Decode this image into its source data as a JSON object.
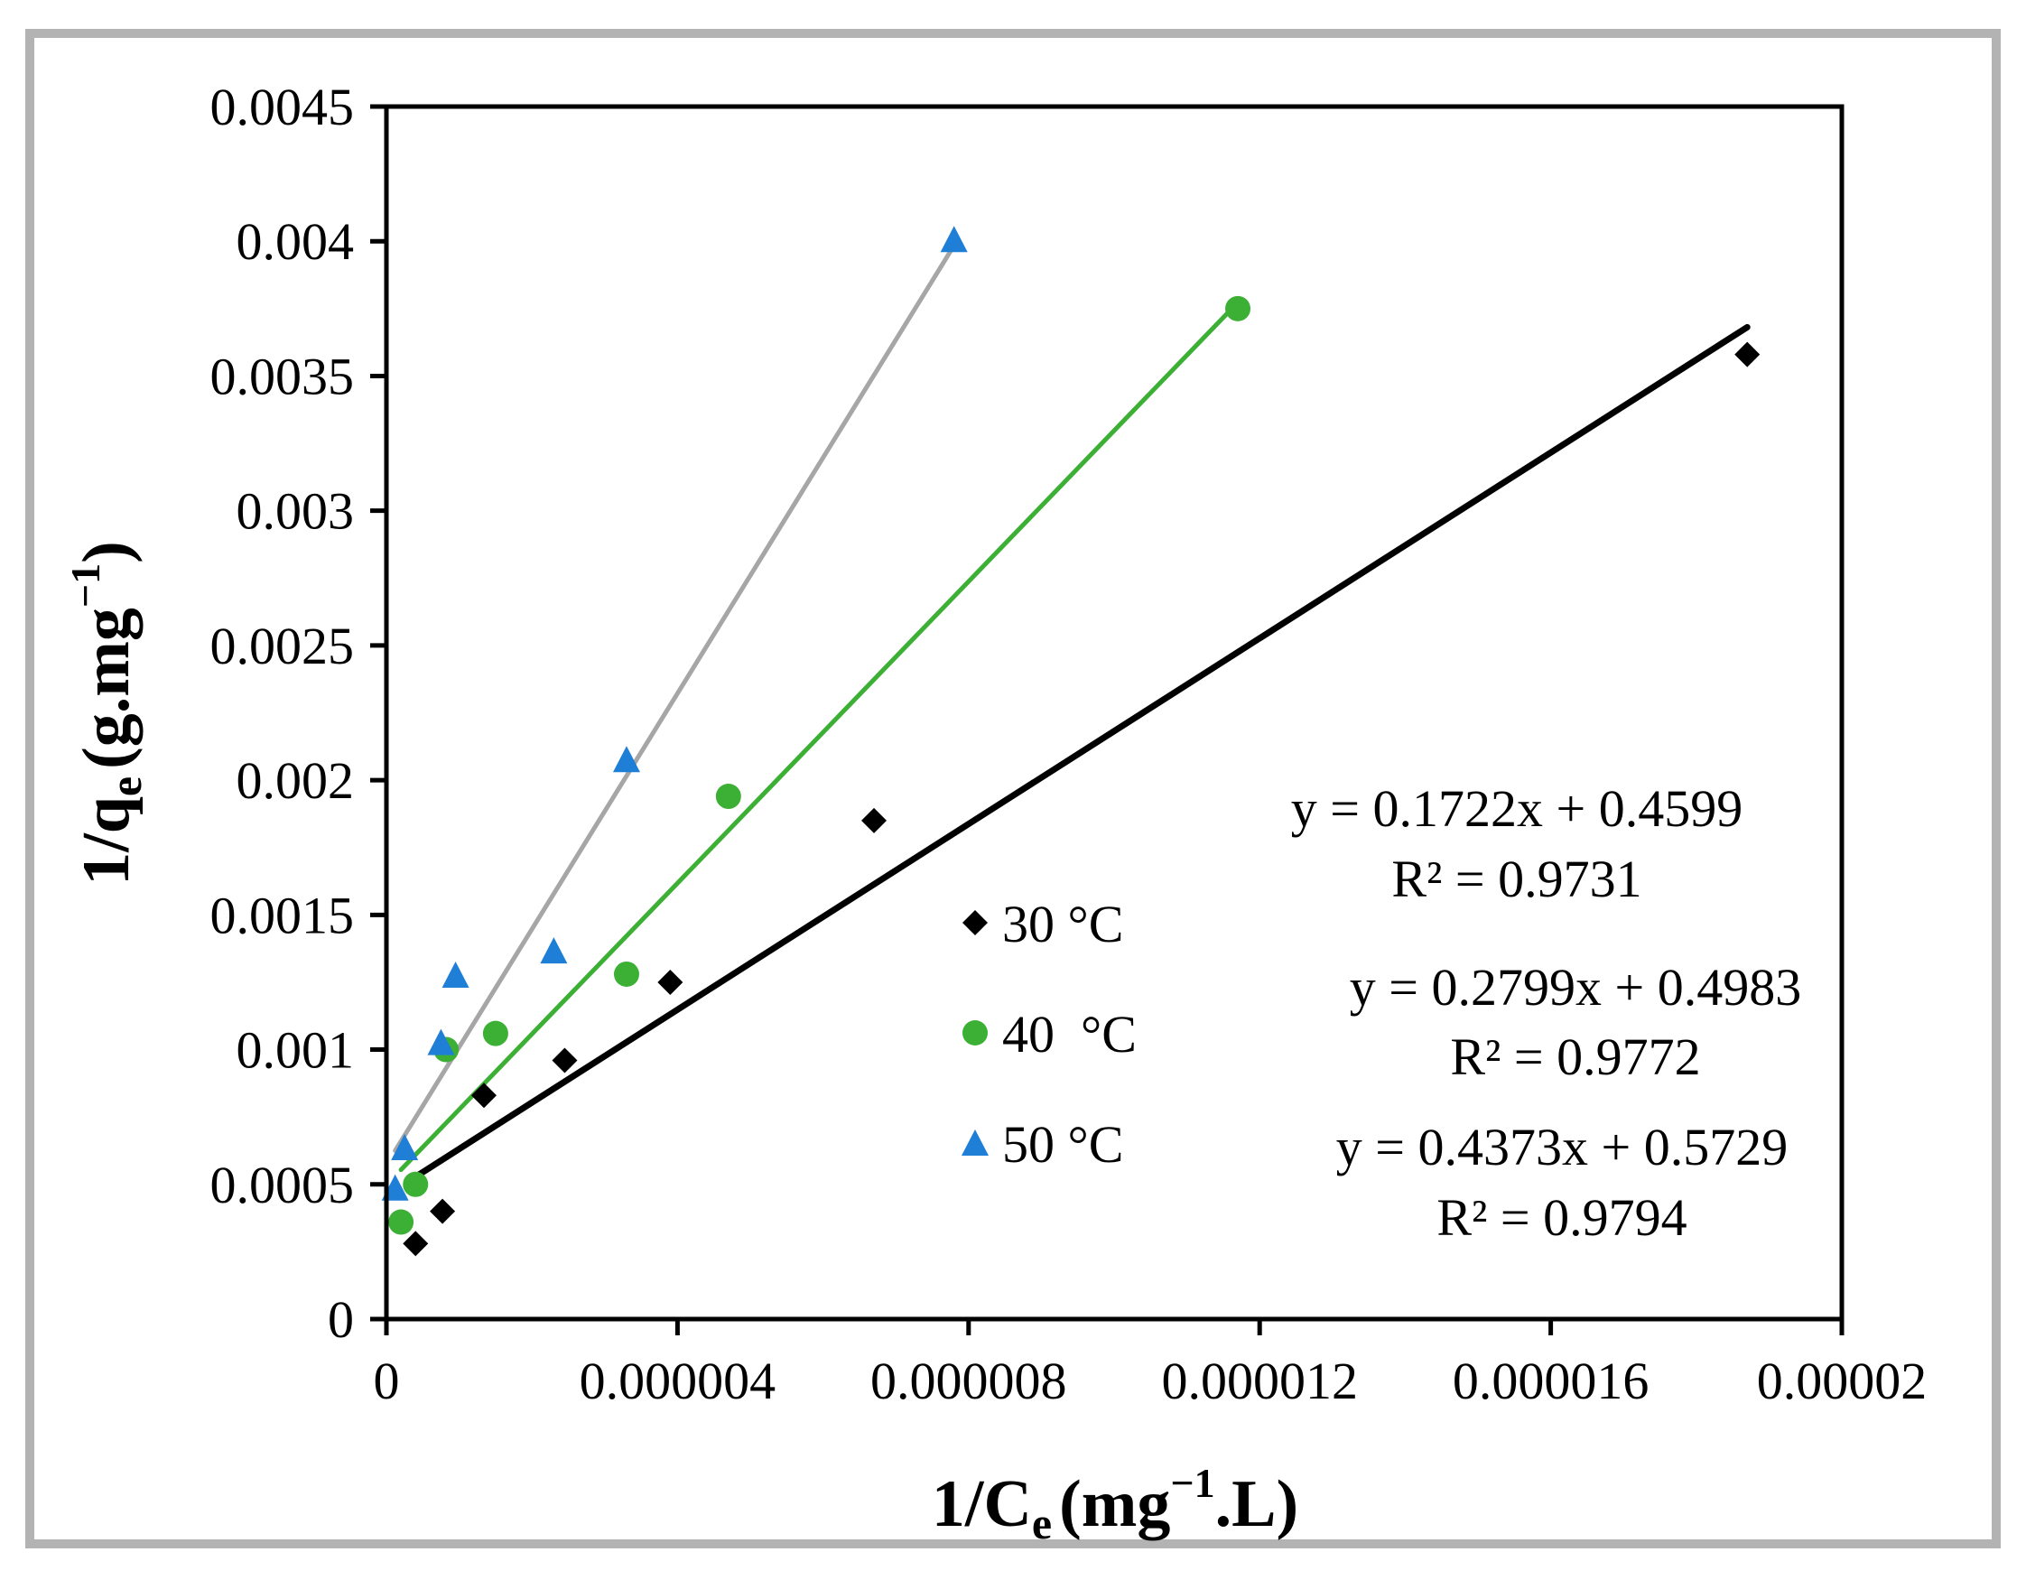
{
  "chart_data": {
    "type": "scatter",
    "xlabel": {
      "main": "1/C",
      "sub": "e",
      "rest1": "(mg",
      "sup": "−1",
      "rest2": ".L)"
    },
    "ylabel": {
      "main": "1/q",
      "sub": "e",
      "rest1": "(g.mg",
      "sup": "−1",
      "rest2": ")"
    },
    "xlim": [
      0,
      2e-05
    ],
    "ylim": [
      0,
      0.0045
    ],
    "x_ticks": [
      0,
      4e-06,
      8e-06,
      1.2e-05,
      1.6e-05,
      2e-05
    ],
    "x_tick_labels": [
      "0",
      "0.000004",
      "0.000008",
      "0.000012",
      "0.000016",
      "0.00002"
    ],
    "y_ticks": [
      0,
      0.0005,
      0.001,
      0.0015,
      0.002,
      0.0025,
      0.003,
      0.0035,
      0.004,
      0.0045
    ],
    "y_tick_labels": [
      "0",
      "0.0005",
      "0.001",
      "0.0015",
      "0.002",
      "0.0025",
      "0.003",
      "0.0035",
      "0.004",
      "0.0045"
    ],
    "grid": false,
    "legend_position": "center",
    "series": [
      {
        "name": "30 °C",
        "marker": "diamond",
        "color": "#000000",
        "line_color": "#000000",
        "points": [
          [
            4e-07,
            0.00028
          ],
          [
            7.7e-07,
            0.0004
          ],
          [
            1.34e-06,
            0.00083
          ],
          [
            2.45e-06,
            0.00096
          ],
          [
            3.9e-06,
            0.00125
          ],
          [
            6.7e-06,
            0.00185
          ],
          [
            1.87e-05,
            0.00358
          ]
        ],
        "trend": {
          "x": [
            4e-07,
            1.87e-05
          ],
          "y": [
            0.000528,
            0.003681
          ]
        },
        "equation": "y = 0.1722x + 0.4599",
        "r2": "R² = 0.9731"
      },
      {
        "name": "40  °C",
        "marker": "circle",
        "color": "#3cb034",
        "line_color": "#3cb034",
        "points": [
          [
            2e-07,
            0.00036
          ],
          [
            4e-07,
            0.0005
          ],
          [
            8.2e-07,
            0.001
          ],
          [
            1.5e-06,
            0.00106
          ],
          [
            3.3e-06,
            0.00128
          ],
          [
            4.7e-06,
            0.00194
          ],
          [
            1.17e-05,
            0.00375
          ]
        ],
        "trend": {
          "x": [
            2e-07,
            1.17e-05
          ],
          "y": [
            0.000554,
            0.003773
          ]
        },
        "equation": "y = 0.2799x + 0.4983",
        "r2": "R² = 0.9772"
      },
      {
        "name": "50 °C",
        "marker": "triangle",
        "color": "#1f7fd6",
        "line_color": "#a6a6a6",
        "points": [
          [
            1.2e-07,
            0.00048
          ],
          [
            2.5e-07,
            0.00063
          ],
          [
            7.5e-07,
            0.00102
          ],
          [
            9.5e-07,
            0.00127
          ],
          [
            2.3e-06,
            0.00136
          ],
          [
            3.3e-06,
            0.00207
          ],
          [
            7.8e-06,
            0.004
          ]
        ],
        "trend": {
          "x": [
            1.2e-07,
            7.8e-06
          ],
          "y": [
            0.000625,
            0.003984
          ]
        },
        "equation": "y = 0.4373x + 0.5729",
        "r2": "R² = 0.9794"
      }
    ]
  }
}
